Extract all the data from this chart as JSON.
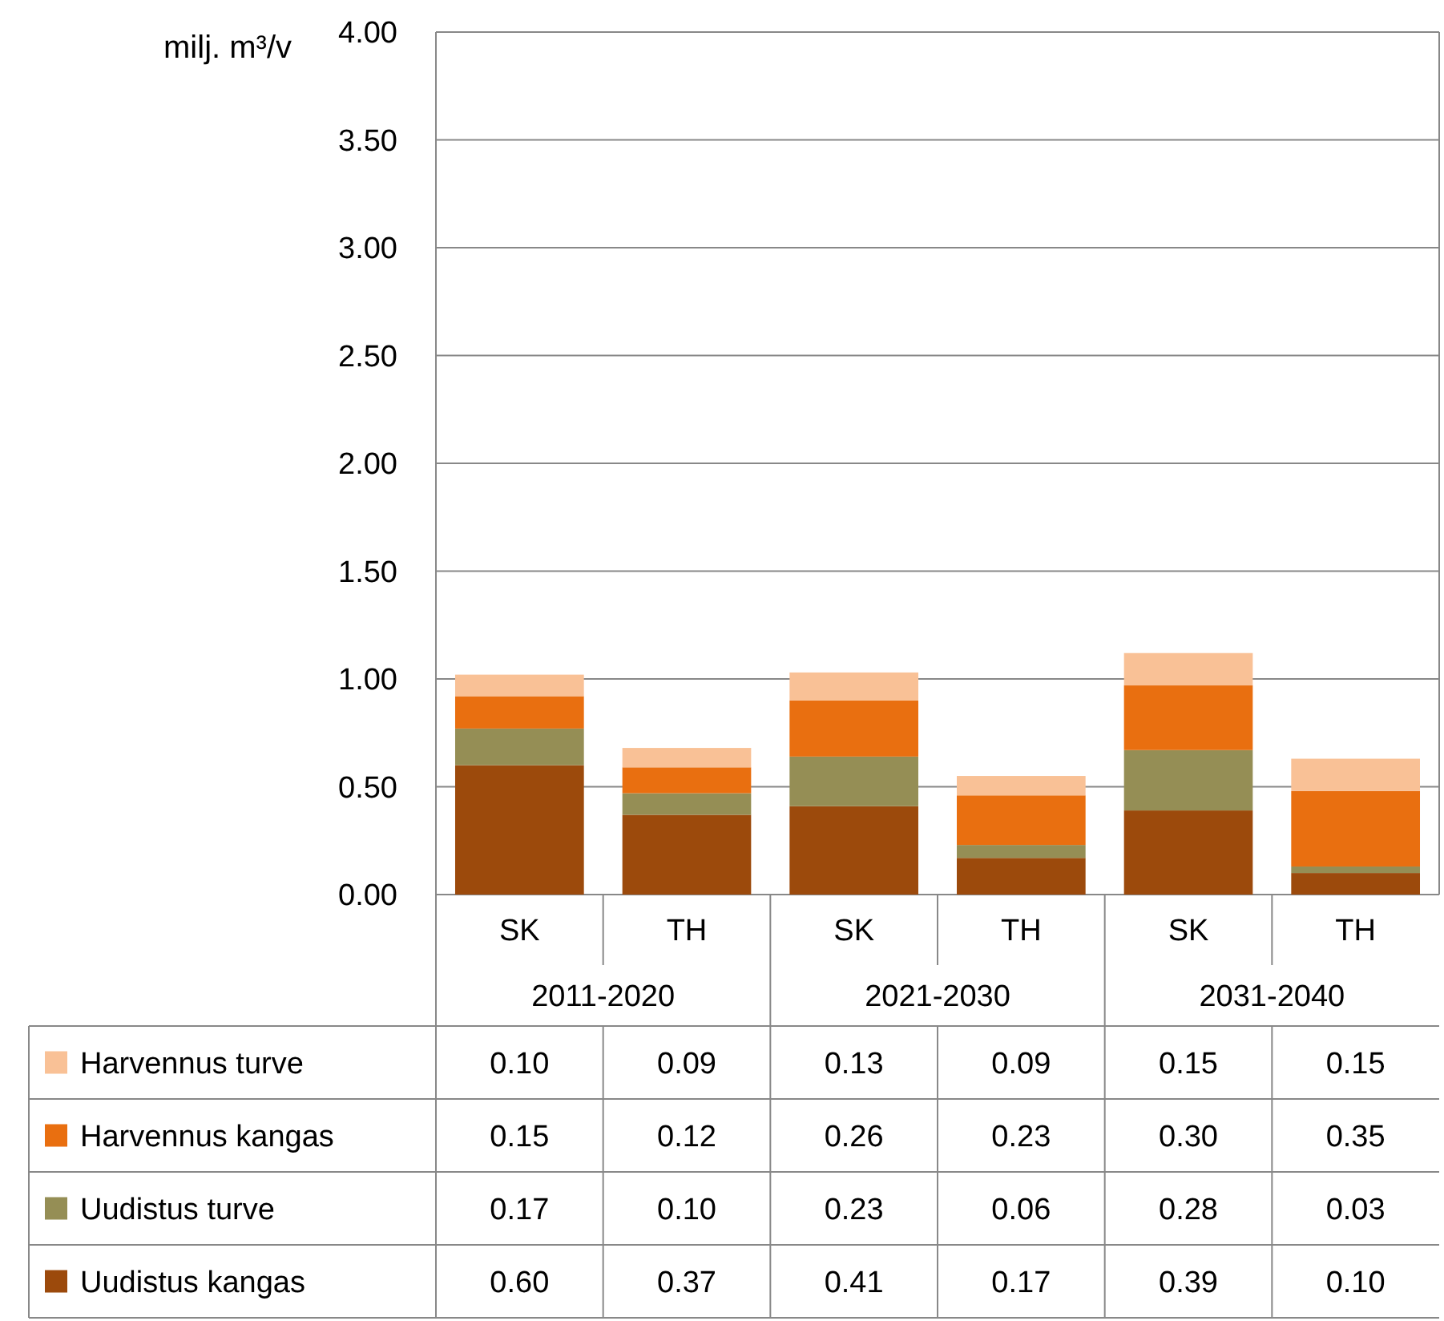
{
  "chart_data": {
    "type": "bar",
    "stacked": true,
    "ylabel": "milj. m³/v",
    "categories": [
      "SK",
      "TH",
      "SK",
      "TH",
      "SK",
      "TH"
    ],
    "annotations": [
      "2011-2020",
      "2021-2030",
      "2031-2040"
    ],
    "series": [
      {
        "name": "Uudistus kangas",
        "color": "#9c4a0c",
        "values": [
          0.6,
          0.37,
          0.41,
          0.17,
          0.39,
          0.1
        ],
        "value_labels": [
          "0.60",
          "0.37",
          "0.41",
          "0.17",
          "0.39",
          "0.10"
        ]
      },
      {
        "name": "Uudistus turve",
        "color": "#958e55",
        "values": [
          0.17,
          0.1,
          0.23,
          0.06,
          0.28,
          0.03
        ],
        "value_labels": [
          "0.17",
          "0.10",
          "0.23",
          "0.06",
          "0.28",
          "0.03"
        ]
      },
      {
        "name": "Harvennus kangas",
        "color": "#e96f10",
        "values": [
          0.15,
          0.12,
          0.26,
          0.23,
          0.3,
          0.35
        ],
        "value_labels": [
          "0.15",
          "0.12",
          "0.26",
          "0.23",
          "0.30",
          "0.35"
        ]
      },
      {
        "name": "Harvennus turve",
        "color": "#f9c196",
        "values": [
          0.1,
          0.09,
          0.13,
          0.09,
          0.15,
          0.15
        ],
        "value_labels": [
          "0.10",
          "0.09",
          "0.13",
          "0.09",
          "0.15",
          "0.15"
        ]
      }
    ],
    "ylim": [
      0,
      4
    ],
    "yticks": [
      {
        "value": 0,
        "label": "0.00"
      },
      {
        "value": 0.5,
        "label": "0.50"
      },
      {
        "value": 1,
        "label": "1.00"
      },
      {
        "value": 1.5,
        "label": "1.50"
      },
      {
        "value": 2,
        "label": "2.00"
      },
      {
        "value": 2.5,
        "label": "2.50"
      },
      {
        "value": 3,
        "label": "3.00"
      },
      {
        "value": 3.5,
        "label": "3.50"
      },
      {
        "value": 4,
        "label": "4.00"
      }
    ],
    "grid": "y",
    "legend": "bottom"
  }
}
